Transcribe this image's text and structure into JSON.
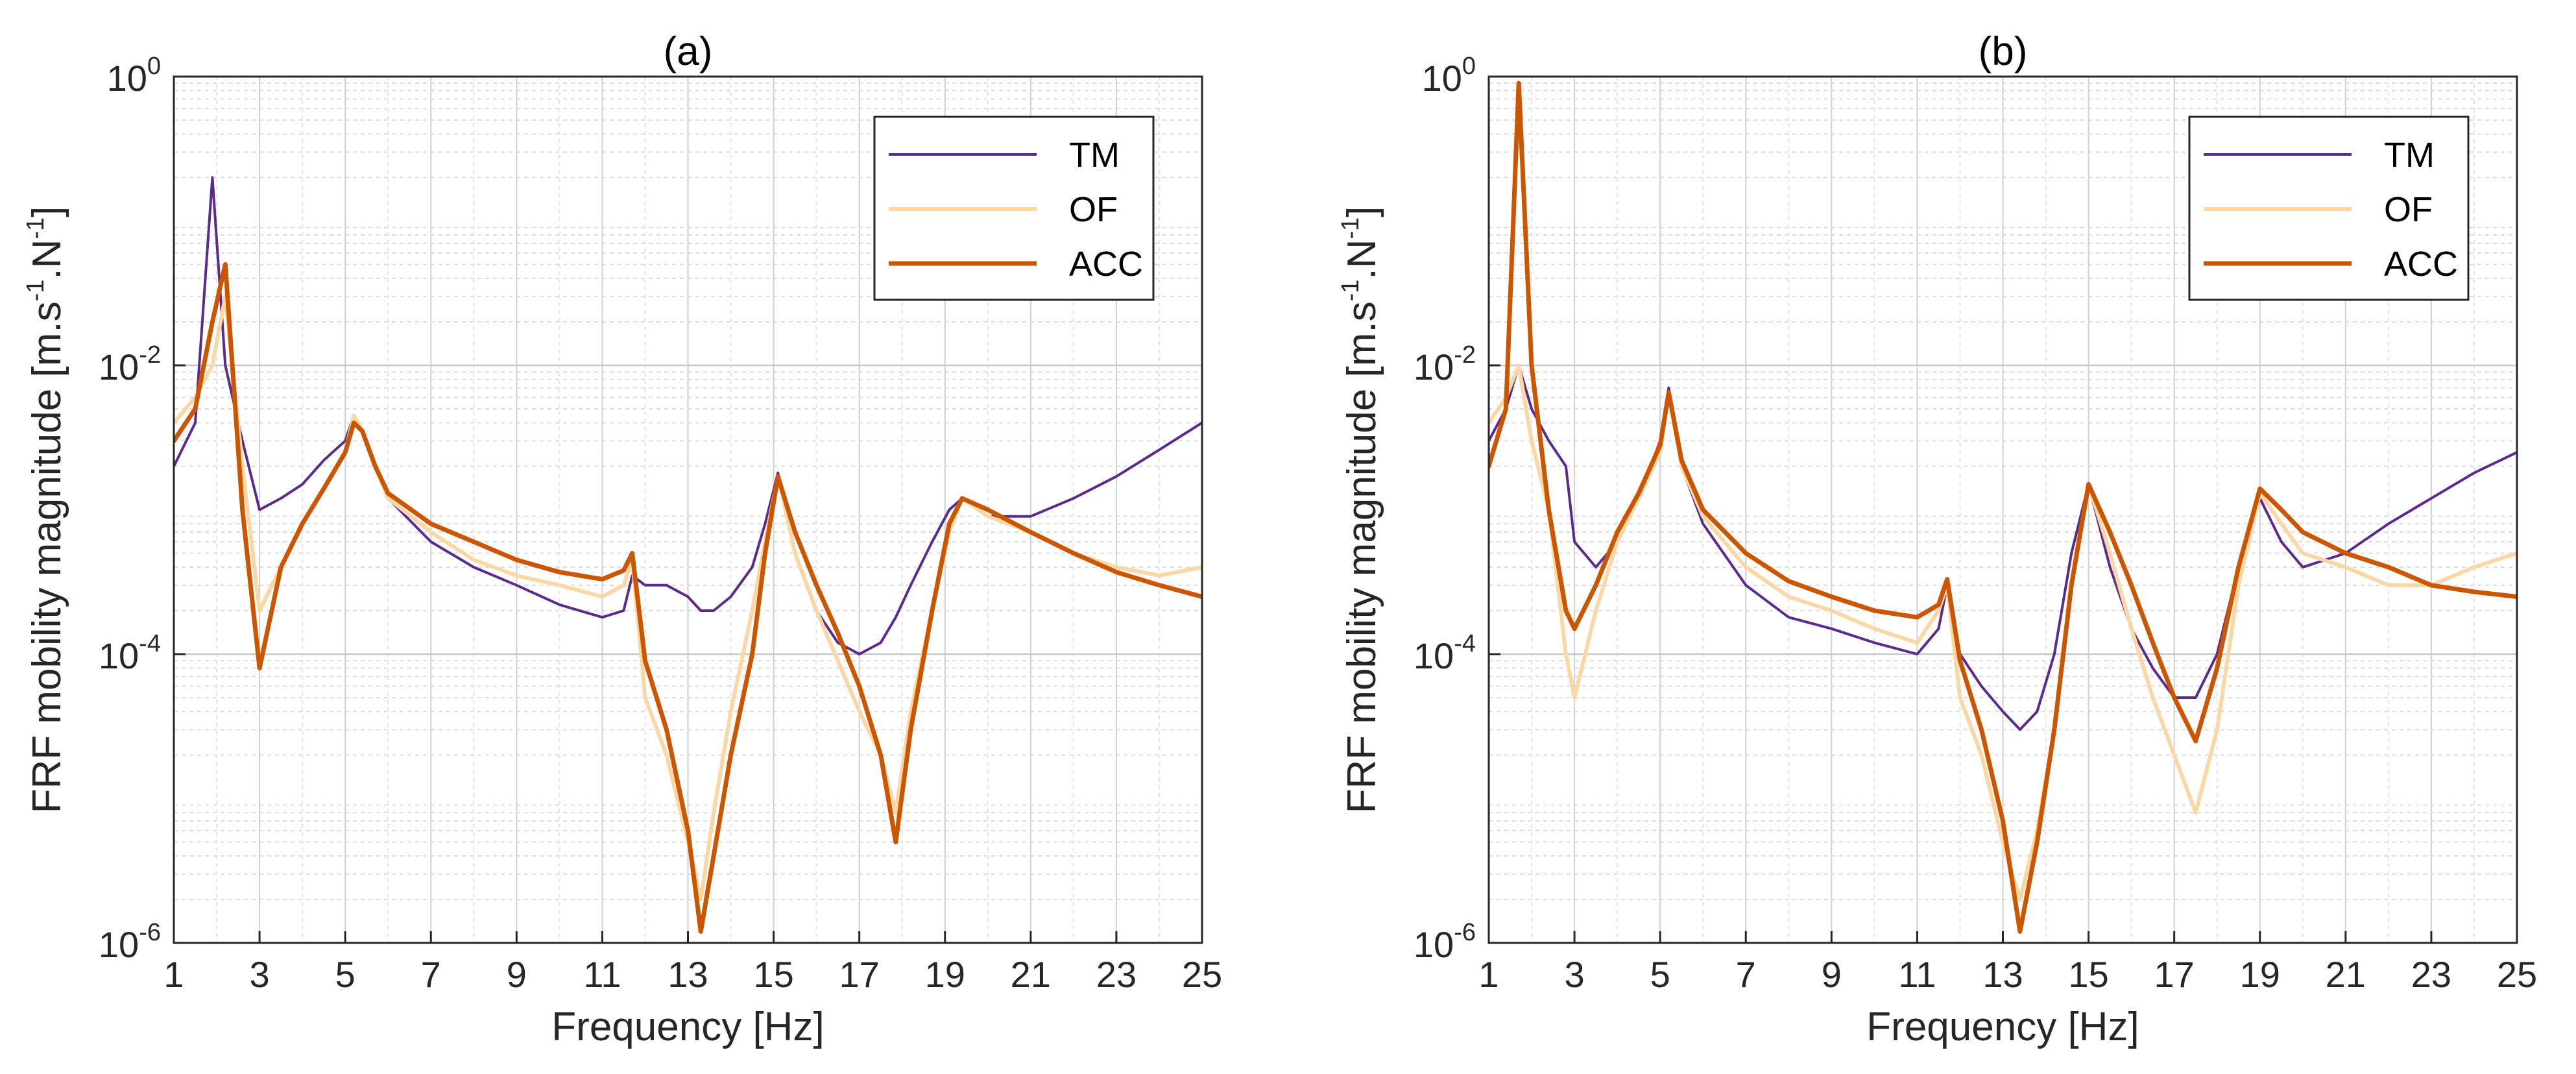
{
  "chart_data": [
    {
      "type": "line",
      "title": "(a)",
      "xlabel": "Frequency [Hz]",
      "ylabel": "FRF mobility magnitude [m.s",
      "ylabel_unit_exp1": "-1",
      "ylabel_unit_mid": ".N",
      "ylabel_unit_exp2": "-1",
      "ylabel_unit_end": "]",
      "xlim": [
        1,
        25
      ],
      "ylim": [
        1e-06,
        1
      ],
      "yscale": "log",
      "grid": true,
      "legend_position": "top-right",
      "x_ticks": [
        1,
        3,
        5,
        7,
        9,
        11,
        13,
        15,
        17,
        19,
        21,
        23,
        25
      ],
      "x_tick_labels": [
        "1",
        "3",
        "5",
        "7",
        "9",
        "11",
        "13",
        "15",
        "17",
        "19",
        "21",
        "23",
        "25"
      ],
      "y_ticks": [
        1e-06,
        0.0001,
        0.01,
        1
      ],
      "y_tick_labels": [
        {
          "base": "10",
          "exp": "-6"
        },
        {
          "base": "10",
          "exp": "-4"
        },
        {
          "base": "10",
          "exp": "-2"
        },
        {
          "base": "10",
          "exp": "0"
        }
      ],
      "x": [
        1.0,
        1.5,
        1.9,
        2.2,
        2.6,
        3.0,
        3.5,
        4.0,
        4.5,
        5.0,
        5.2,
        5.4,
        5.7,
        6.0,
        7.0,
        8.0,
        9.0,
        10.0,
        11.0,
        11.5,
        11.7,
        12.0,
        12.5,
        13.0,
        13.3,
        13.6,
        14.0,
        14.5,
        14.8,
        15.1,
        15.5,
        16.0,
        16.5,
        17.0,
        17.5,
        17.85,
        18.2,
        18.7,
        19.1,
        19.4,
        20.0,
        21.0,
        22.0,
        23.0,
        24.0,
        25.0
      ],
      "series": [
        {
          "name": "TM",
          "color": "#5b2a8e",
          "values": [
            0.002,
            0.004,
            0.2,
            0.01,
            0.003,
            0.001,
            0.0012,
            0.0015,
            0.0022,
            0.003,
            0.0045,
            0.0035,
            0.002,
            0.0012,
            0.0006,
            0.0004,
            0.0003,
            0.00022,
            0.00018,
            0.0002,
            0.00035,
            0.0003,
            0.0003,
            0.00025,
            0.0002,
            0.0002,
            0.00025,
            0.0004,
            0.0008,
            0.0018,
            0.0005,
            0.0002,
            0.00012,
            0.0001,
            0.00012,
            0.00018,
            0.0003,
            0.0006,
            0.001,
            0.0012,
            0.0009,
            0.0009,
            0.0012,
            0.0017,
            0.0026,
            0.004
          ]
        },
        {
          "name": "OF",
          "color": "#f9d8a6",
          "values": [
            0.004,
            0.006,
            0.01,
            0.03,
            0.002,
            0.0002,
            0.0004,
            0.0008,
            0.0014,
            0.0025,
            0.0045,
            0.0035,
            0.002,
            0.0012,
            0.0007,
            0.00045,
            0.00035,
            0.0003,
            0.00025,
            0.0003,
            0.00045,
            5e-05,
            2e-05,
            5e-06,
            2e-06,
            8e-06,
            4e-05,
            0.0002,
            0.0006,
            0.0017,
            0.0005,
            0.0002,
            9e-05,
            4e-05,
            2e-05,
            8e-06,
            4e-05,
            0.0002,
            0.0007,
            0.0012,
            0.0009,
            0.0007,
            0.0005,
            0.0004,
            0.00035,
            0.0004
          ]
        },
        {
          "name": "ACC",
          "color": "#cc5500",
          "values": [
            0.003,
            0.005,
            0.02,
            0.05,
            0.001,
            8e-05,
            0.0004,
            0.0008,
            0.0014,
            0.0025,
            0.004,
            0.0035,
            0.002,
            0.0013,
            0.0008,
            0.0006,
            0.00045,
            0.00037,
            0.00033,
            0.00038,
            0.0005,
            9e-05,
            3e-05,
            6e-06,
            1.2e-06,
            4e-06,
            2e-05,
            0.0001,
            0.0005,
            0.0017,
            0.0007,
            0.0003,
            0.00014,
            6e-05,
            2e-05,
            5e-06,
            3e-05,
            0.0002,
            0.0008,
            0.0012,
            0.001,
            0.0007,
            0.0005,
            0.00037,
            0.0003,
            0.00025
          ]
        }
      ]
    },
    {
      "type": "line",
      "title": "(b)",
      "xlabel": "Frequency [Hz]",
      "ylabel": "FRF mobility magnitude [m.s",
      "ylabel_unit_exp1": "-1",
      "ylabel_unit_mid": ".N",
      "ylabel_unit_exp2": "-1",
      "ylabel_unit_end": "]",
      "xlim": [
        1,
        25
      ],
      "ylim": [
        1e-06,
        1
      ],
      "yscale": "log",
      "grid": true,
      "legend_position": "top-right",
      "x_ticks": [
        1,
        3,
        5,
        7,
        9,
        11,
        13,
        15,
        17,
        19,
        21,
        23,
        25
      ],
      "x_tick_labels": [
        "1",
        "3",
        "5",
        "7",
        "9",
        "11",
        "13",
        "15",
        "17",
        "19",
        "21",
        "23",
        "25"
      ],
      "y_ticks": [
        1e-06,
        0.0001,
        0.01,
        1
      ],
      "y_tick_labels": [
        {
          "base": "10",
          "exp": "-6"
        },
        {
          "base": "10",
          "exp": "-4"
        },
        {
          "base": "10",
          "exp": "-2"
        },
        {
          "base": "10",
          "exp": "0"
        }
      ],
      "x": [
        1.0,
        1.4,
        1.7,
        2.0,
        2.4,
        2.8,
        3.0,
        3.5,
        4.0,
        4.5,
        5.0,
        5.2,
        5.5,
        6.0,
        7.0,
        8.0,
        9.0,
        10.0,
        11.0,
        11.5,
        11.7,
        12.0,
        12.5,
        13.0,
        13.4,
        13.8,
        14.2,
        14.6,
        15.0,
        15.5,
        16.0,
        16.5,
        17.0,
        17.5,
        18.0,
        18.5,
        19.0,
        19.5,
        20.0,
        21.0,
        22.0,
        23.0,
        24.0,
        25.0
      ],
      "series": [
        {
          "name": "TM",
          "color": "#5b2a8e",
          "values": [
            0.003,
            0.005,
            0.01,
            0.005,
            0.003,
            0.002,
            0.0006,
            0.0004,
            0.0006,
            0.0012,
            0.003,
            0.007,
            0.002,
            0.0008,
            0.0003,
            0.00018,
            0.00015,
            0.00012,
            0.0001,
            0.00015,
            0.0003,
            0.0001,
            6e-05,
            4e-05,
            3e-05,
            4e-05,
            0.0001,
            0.0005,
            0.0015,
            0.0004,
            0.00015,
            8e-05,
            5e-05,
            5e-05,
            0.0001,
            0.0004,
            0.0012,
            0.0006,
            0.0004,
            0.0005,
            0.0008,
            0.0012,
            0.0018,
            0.0025
          ]
        },
        {
          "name": "OF",
          "color": "#f9d8a6",
          "values": [
            0.004,
            0.006,
            0.01,
            0.003,
            0.001,
            0.0001,
            5e-05,
            0.0002,
            0.0006,
            0.0012,
            0.0025,
            0.0065,
            0.002,
            0.0009,
            0.0004,
            0.00025,
            0.0002,
            0.00015,
            0.00012,
            0.0002,
            0.0003,
            5e-05,
            2e-05,
            5e-06,
            2e-06,
            6e-06,
            3e-05,
            0.0003,
            0.0015,
            0.0005,
            0.00015,
            5e-05,
            2e-05,
            8e-06,
            3e-05,
            0.0003,
            0.0013,
            0.0008,
            0.0005,
            0.0004,
            0.0003,
            0.0003,
            0.0004,
            0.0005
          ]
        },
        {
          "name": "ACC",
          "color": "#cc5500",
          "values": [
            0.002,
            0.005,
            0.9,
            0.01,
            0.001,
            0.0002,
            0.00015,
            0.0003,
            0.0007,
            0.0013,
            0.0028,
            0.0065,
            0.0022,
            0.001,
            0.0005,
            0.00032,
            0.00025,
            0.0002,
            0.00018,
            0.00022,
            0.00033,
            9e-05,
            3e-05,
            7e-06,
            1.2e-06,
            5e-06,
            3e-05,
            0.0003,
            0.0015,
            0.0007,
            0.0003,
            0.00012,
            5e-05,
            2.5e-05,
            8e-05,
            0.0004,
            0.0014,
            0.001,
            0.0007,
            0.0005,
            0.0004,
            0.0003,
            0.00027,
            0.00025
          ]
        }
      ]
    }
  ]
}
